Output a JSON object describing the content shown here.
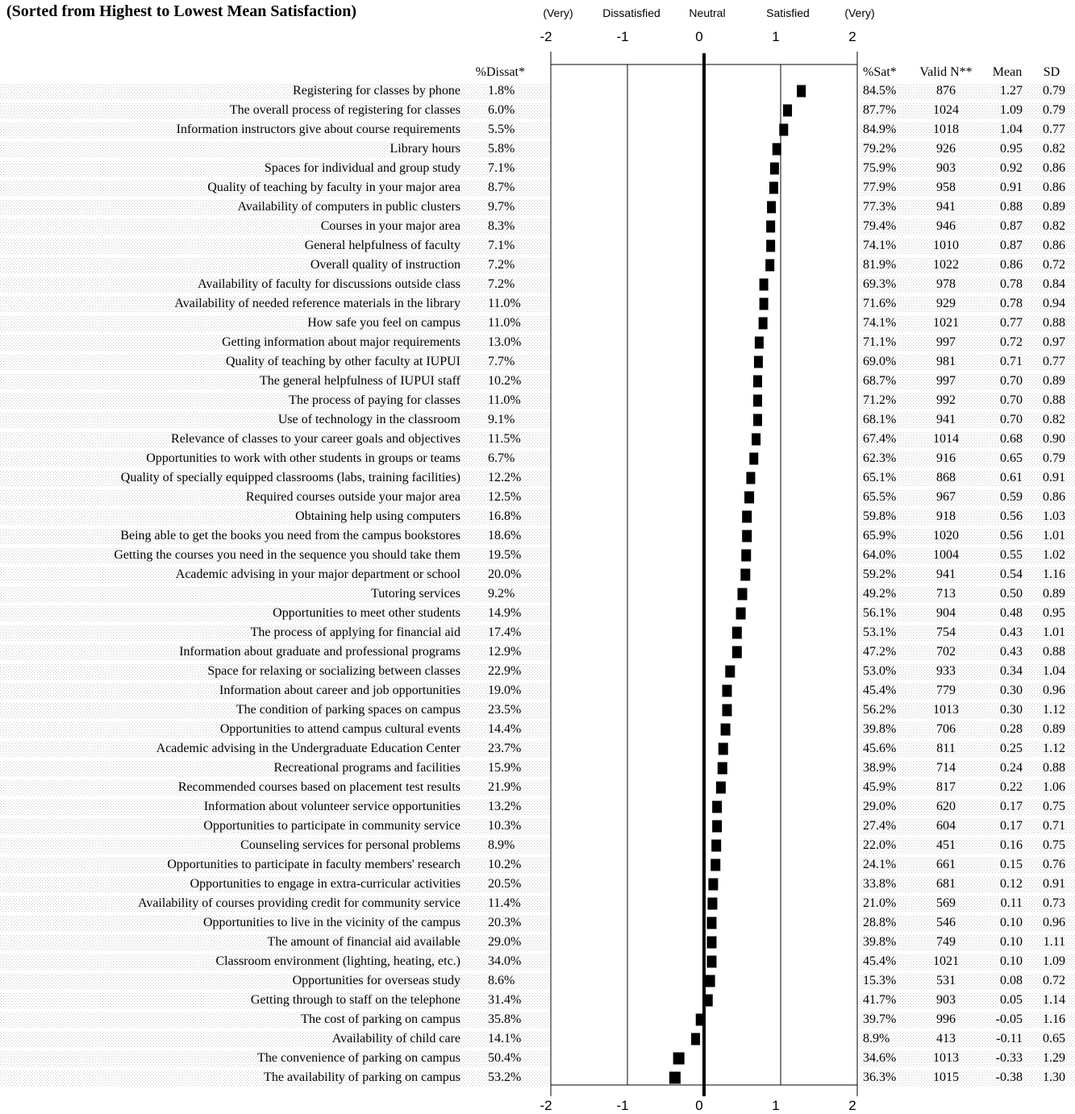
{
  "title": "(Sorted from Highest to Lowest Mean Satisfaction)",
  "scale_labels": [
    "(Very)",
    "Dissatisfied",
    "Neutral",
    "Satisfied",
    "(Very)"
  ],
  "col_headers": {
    "dissat": "%Dissat*",
    "sat": "%Sat*",
    "n": "Valid N**",
    "mean": "Mean",
    "sd": "SD"
  },
  "chart_data": {
    "type": "scatter",
    "xlim": [
      -2,
      2
    ],
    "xticks": [
      "-2",
      "-1",
      "0",
      "1",
      "2"
    ],
    "categories": [
      "Registering for classes by phone",
      "The overall process of registering for classes",
      "Information instructors give about course requirements",
      "Library hours",
      "Spaces for individual and group study",
      "Quality of teaching by faculty in your major area",
      "Availability of computers in public clusters",
      "Courses in your major area",
      "General helpfulness of faculty",
      "Overall quality of instruction",
      "Availability of faculty for discussions outside class",
      "Availability of needed reference materials in the library",
      "How safe you feel on campus",
      "Getting information about major requirements",
      "Quality of teaching by other faculty at IUPUI",
      "The general helpfulness of IUPUI staff",
      "The process of paying for classes",
      "Use of technology in the classroom",
      "Relevance of classes to your career goals and objectives",
      "Opportunities to work with other students in groups or teams",
      "Quality of specially equipped classrooms (labs, training facilities)",
      "Required courses outside your major area ",
      "Obtaining help using computers",
      "Being able to get the books you need from the campus bookstores",
      "Getting the courses you need in the sequence you should take them",
      "Academic advising in your major department or school",
      "Tutoring services",
      "Opportunities to meet other students",
      "The process of applying for financial aid",
      "Information about graduate and professional programs",
      "Space for relaxing or socializing between classes",
      "Information about career and job opportunities",
      "The condition of parking spaces on campus",
      "Opportunities to attend campus cultural events",
      "Academic advising in the Undergraduate Education Center",
      "Recreational programs and facilities",
      "Recommended courses based on placement test results",
      "Information about volunteer service opportunities",
      "Opportunities to participate in community service",
      "Counseling services for personal problems",
      "Opportunities to participate in faculty members' research",
      "Opportunities to engage in extra-curricular activities ",
      "Availability of courses providing credit for community service",
      "Opportunities to live in the vicinity of the campus",
      "The amount of financial aid available",
      "Classroom environment (lighting, heating, etc.)",
      "Opportunities for overseas study",
      "Getting through to staff on the telephone",
      "The cost of parking on campus",
      "Availability of child care",
      "The convenience of parking on campus",
      "The availability of parking on campus"
    ],
    "dissat": [
      "1.8%",
      "6.0%",
      "5.5%",
      "5.8%",
      "7.1%",
      "8.7%",
      "9.7%",
      "8.3%",
      "7.1%",
      "7.2%",
      "7.2%",
      "11.0%",
      "11.0%",
      "13.0%",
      "7.7%",
      "10.2%",
      "11.0%",
      "9.1%",
      "11.5%",
      "6.7%",
      "12.2%",
      "12.5%",
      "16.8%",
      "18.6%",
      "19.5%",
      "20.0%",
      "9.2%",
      "14.9%",
      "17.4%",
      "12.9%",
      "22.9%",
      "19.0%",
      "23.5%",
      "14.4%",
      "23.7%",
      "15.9%",
      "21.9%",
      "13.2%",
      "10.3%",
      "8.9%",
      "10.2%",
      "20.5%",
      "11.4%",
      "20.3%",
      "29.0%",
      "34.0%",
      "8.6%",
      "31.4%",
      "35.8%",
      "14.1%",
      "50.4%",
      "53.2%"
    ],
    "sat": [
      "84.5%",
      "87.7%",
      "84.9%",
      "79.2%",
      "75.9%",
      "77.9%",
      "77.3%",
      "79.4%",
      "74.1%",
      "81.9%",
      "69.3%",
      "71.6%",
      "74.1%",
      "71.1%",
      "69.0%",
      "68.7%",
      "71.2%",
      "68.1%",
      "67.4%",
      "62.3%",
      "65.1%",
      "65.5%",
      "59.8%",
      "65.9%",
      "64.0%",
      "59.2%",
      "49.2%",
      "56.1%",
      "53.1%",
      "47.2%",
      "53.0%",
      "45.4%",
      "56.2%",
      "39.8%",
      "45.6%",
      "38.9%",
      "45.9%",
      "29.0%",
      "27.4%",
      "22.0%",
      "24.1%",
      "33.8%",
      "21.0%",
      "28.8%",
      "39.8%",
      "45.4%",
      "15.3%",
      "41.7%",
      "39.7%",
      "8.9%",
      "34.6%",
      "36.3%"
    ],
    "n": [
      "876",
      "1024",
      "1018",
      "926",
      "903",
      "958",
      "941",
      "946",
      "1010",
      "1022",
      "978",
      "929",
      "1021",
      "997",
      "981",
      "997",
      "992",
      "941",
      "1014",
      "916",
      "868",
      "967",
      "918",
      "1020",
      "1004",
      "941",
      "713",
      "904",
      "754",
      "702",
      "933",
      "779",
      "1013",
      "706",
      "811",
      "714",
      "817",
      "620",
      "604",
      "451",
      "661",
      "681",
      "569",
      "546",
      "749",
      "1021",
      "531",
      "903",
      "996",
      "413",
      "1013",
      "1015"
    ],
    "mean": [
      "1.27",
      "1.09",
      "1.04",
      "0.95",
      "0.92",
      "0.91",
      "0.88",
      "0.87",
      "0.87",
      "0.86",
      "0.78",
      "0.78",
      "0.77",
      "0.72",
      "0.71",
      "0.70",
      "0.70",
      "0.70",
      "0.68",
      "0.65",
      "0.61",
      "0.59",
      "0.56",
      "0.56",
      "0.55",
      "0.54",
      "0.50",
      "0.48",
      "0.43",
      "0.43",
      "0.34",
      "0.30",
      "0.30",
      "0.28",
      "0.25",
      "0.24",
      "0.22",
      "0.17",
      "0.17",
      "0.16",
      "0.15",
      "0.12",
      "0.11",
      "0.10",
      "0.10",
      "0.10",
      "0.08",
      "0.05",
      "-0.05",
      "-0.11",
      "-0.33",
      "-0.38"
    ],
    "sd": [
      "0.79",
      "0.79",
      "0.77",
      "0.82",
      "0.86",
      "0.86",
      "0.89",
      "0.82",
      "0.86",
      "0.72",
      "0.84",
      "0.94",
      "0.88",
      "0.97",
      "0.77",
      "0.89",
      "0.88",
      "0.82",
      "0.90",
      "0.79",
      "0.91",
      "0.86",
      "1.03",
      "1.01",
      "1.02",
      "1.16",
      "0.89",
      "0.95",
      "1.01",
      "0.88",
      "1.04",
      "0.96",
      "1.12",
      "0.89",
      "1.12",
      "0.88",
      "1.06",
      "0.75",
      "0.71",
      "0.75",
      "0.76",
      "0.91",
      "0.73",
      "0.96",
      "1.11",
      "1.09",
      "0.72",
      "1.14",
      "1.16",
      "0.65",
      "1.29",
      "1.30"
    ]
  }
}
